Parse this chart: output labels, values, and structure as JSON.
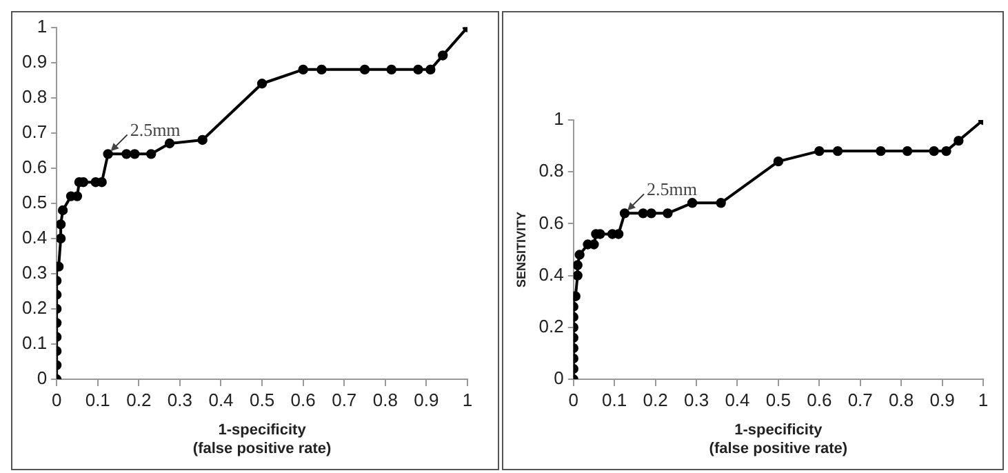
{
  "chart_data": [
    {
      "type": "line",
      "xlabel": "1-specificity\n(false positive rate)",
      "x": [
        0,
        0,
        0,
        0,
        0,
        0,
        0,
        0,
        0,
        0.005,
        0.01,
        0.01,
        0.015,
        0.035,
        0.05,
        0.055,
        0.065,
        0.095,
        0.11,
        0.125,
        0.17,
        0.19,
        0.23,
        0.275,
        0.355,
        0.5,
        0.6,
        0.645,
        0.75,
        0.815,
        0.88,
        0.91,
        0.94,
        1
      ],
      "series": [
        {
          "color": "#000000",
          "values": [
            0,
            0.04,
            0.08,
            0.12,
            0.16,
            0.2,
            0.24,
            0.28,
            0.32,
            0.32,
            0.4,
            0.44,
            0.48,
            0.52,
            0.52,
            0.56,
            0.56,
            0.56,
            0.56,
            0.64,
            0.64,
            0.64,
            0.64,
            0.67,
            0.68,
            0.84,
            0.88,
            0.88,
            0.88,
            0.88,
            0.88,
            0.88,
            0.92,
            1
          ]
        }
      ],
      "xlim": [
        0,
        1
      ],
      "xticks": [
        0,
        0.1,
        0.2,
        0.3,
        0.4,
        0.5,
        0.6,
        0.7,
        0.8,
        0.9,
        1
      ],
      "ylim": [
        0,
        1
      ],
      "yticks": [
        0,
        0.1,
        0.2,
        0.3,
        0.4,
        0.5,
        0.6,
        0.7,
        0.8,
        0.9,
        1
      ],
      "marker": "circle",
      "line_style": "solid",
      "grid": false,
      "legend": false,
      "annotations": [
        {
          "text": "2.5mm",
          "x": 0.125,
          "y": 0.64
        }
      ]
    },
    {
      "type": "line",
      "xlabel": "1-specificity\n(false positive rate)",
      "ylabel": "SENSITIVITY",
      "x": [
        0,
        0,
        0,
        0,
        0,
        0,
        0,
        0,
        0,
        0.005,
        0.01,
        0.01,
        0.015,
        0.035,
        0.05,
        0.055,
        0.065,
        0.095,
        0.11,
        0.125,
        0.17,
        0.19,
        0.23,
        0.29,
        0.36,
        0.5,
        0.6,
        0.645,
        0.75,
        0.815,
        0.88,
        0.91,
        0.94,
        1
      ],
      "series": [
        {
          "color": "#000000",
          "values": [
            0,
            0.04,
            0.08,
            0.12,
            0.16,
            0.2,
            0.24,
            0.28,
            0.32,
            0.32,
            0.4,
            0.44,
            0.48,
            0.52,
            0.52,
            0.56,
            0.56,
            0.56,
            0.56,
            0.64,
            0.64,
            0.64,
            0.64,
            0.68,
            0.68,
            0.84,
            0.88,
            0.88,
            0.88,
            0.88,
            0.88,
            0.88,
            0.92,
            1
          ]
        }
      ],
      "xlim": [
        0,
        1
      ],
      "xticks": [
        0,
        0.1,
        0.2,
        0.3,
        0.4,
        0.5,
        0.6,
        0.7,
        0.8,
        0.9,
        1
      ],
      "ylim": [
        0,
        1
      ],
      "yticks": [
        0,
        0.2,
        0.4,
        0.6,
        0.8,
        1
      ],
      "marker": "circle",
      "line_style": "solid",
      "grid": false,
      "legend": false,
      "annotations": [
        {
          "text": "2.5mm",
          "x": 0.125,
          "y": 0.64
        }
      ]
    }
  ]
}
